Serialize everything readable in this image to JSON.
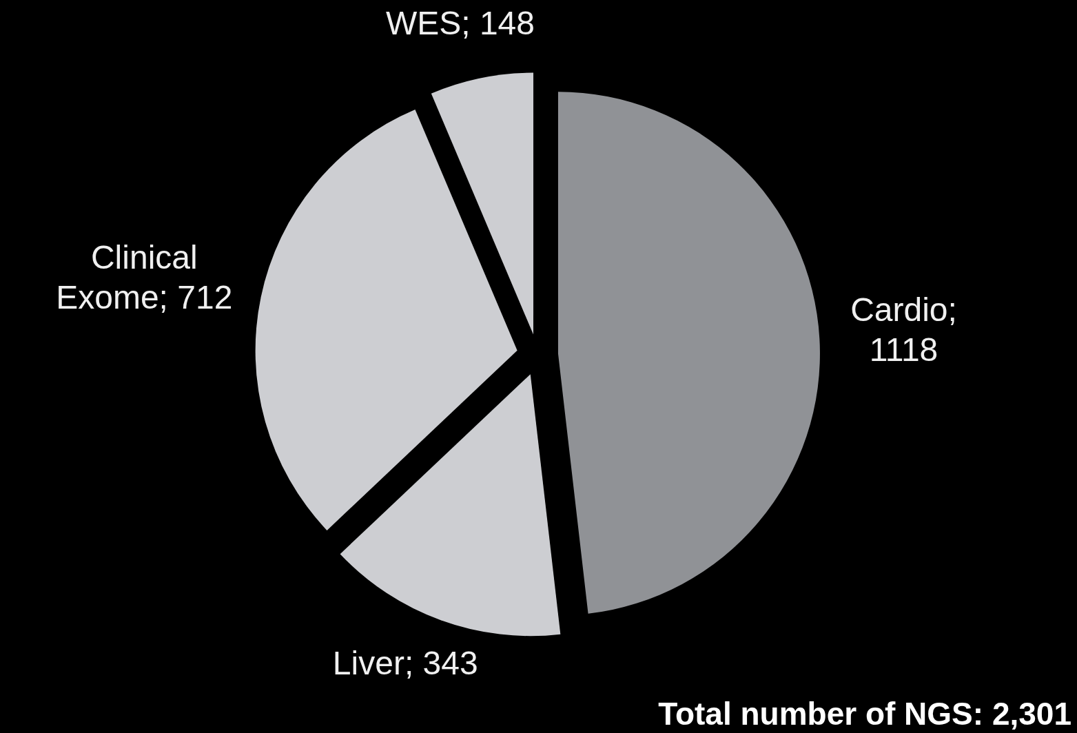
{
  "chart_data": {
    "type": "pie",
    "values": [
      1118,
      343,
      712,
      148
    ],
    "colors": [
      "#909296",
      "#cdced2",
      "#cdced2",
      "#cdced2"
    ],
    "value_labels": [
      "Cardio; 1118",
      "Liver; 343",
      "Clinical Exome; 712",
      "WES; 148"
    ],
    "annotations": [
      "Total number of NGS: 2,301"
    ]
  }
}
